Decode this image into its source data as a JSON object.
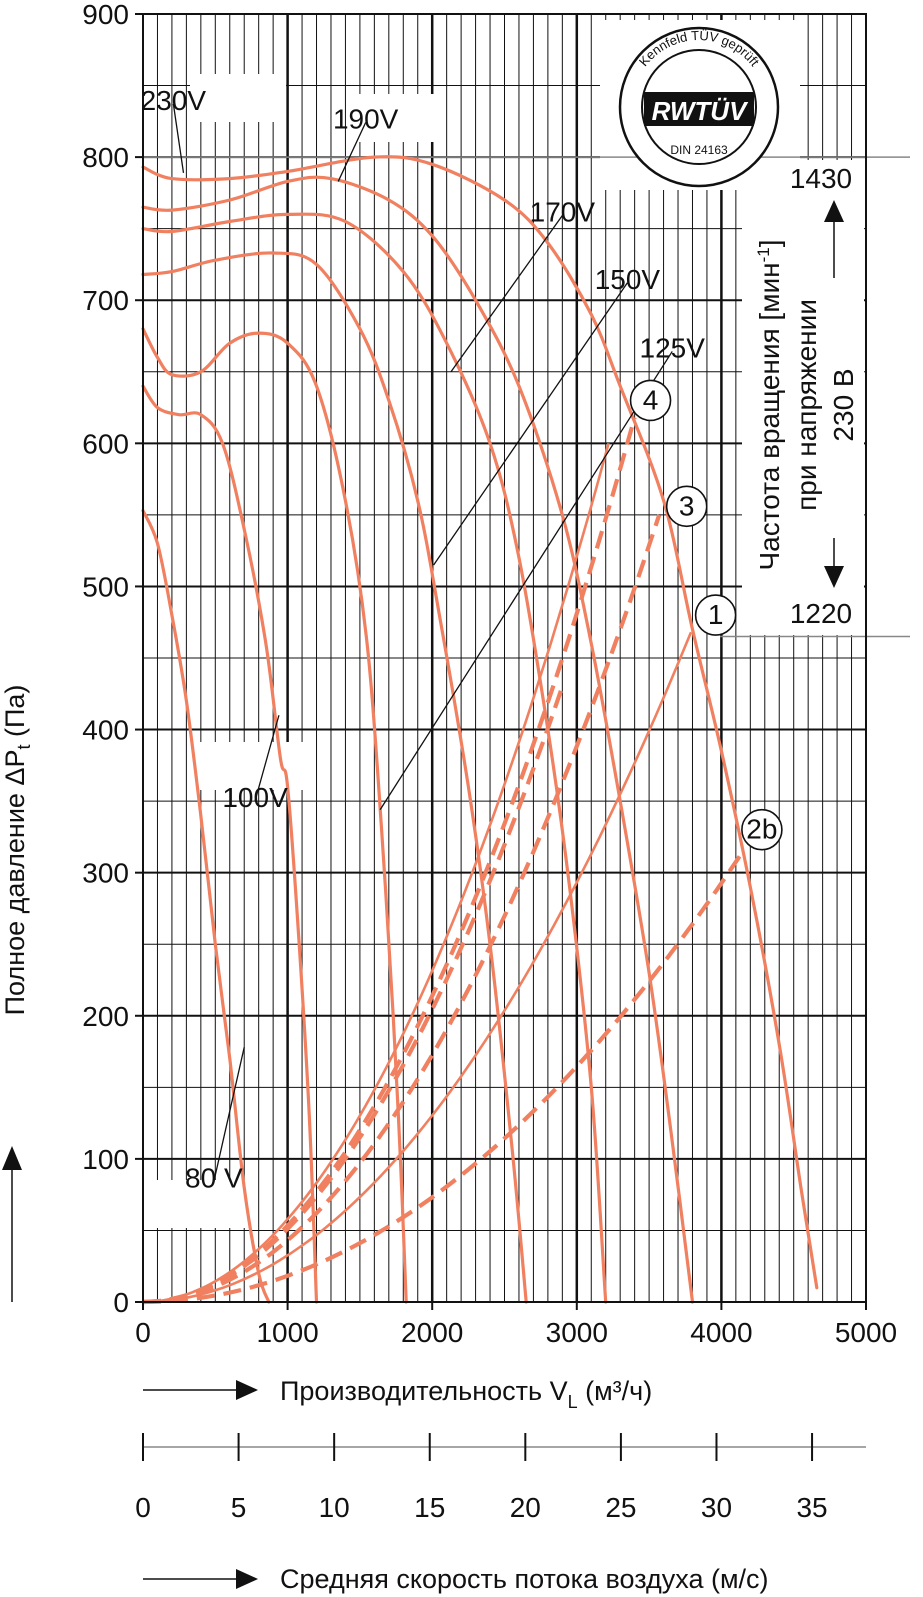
{
  "chart_data": {
    "type": "line",
    "x_axis": {
      "label": "Производительность V",
      "label_sub": "L",
      "label_unit": " (м³/ч)",
      "min": 0,
      "max": 5000,
      "ticks": [
        0,
        1000,
        2000,
        3000,
        4000,
        5000
      ]
    },
    "y_axis": {
      "label": "Полное давление ΔP",
      "label_sub": "t",
      "label_unit": " (Па)",
      "min": 0,
      "max": 900,
      "ticks": [
        0,
        100,
        200,
        300,
        400,
        500,
        600,
        700,
        800,
        900
      ]
    },
    "secondary_axis": {
      "label": "Средняя скорость потока воздуха (м/с)",
      "ticks": [
        0,
        5,
        10,
        15,
        20,
        25,
        30,
        35
      ],
      "m3h_per_ms": 132.2
    },
    "speed_annotation": {
      "line1": "Частота вращения [мин",
      "sup": "-1",
      "line1_end": "]",
      "line2": "при напряжении",
      "line3": "230 В",
      "rpm_high": "1430",
      "rpm_low": "1220",
      "p_high": 800,
      "p_low": 465
    },
    "stamp": {
      "ring_text": "Kennfeld TÜV geprüft",
      "logo": "RWTÜV",
      "din": "DIN 24163"
    },
    "colors": {
      "curve": "#f08060",
      "grid": "#111111"
    },
    "grid": true,
    "fan_curves": [
      {
        "name": "230V",
        "points": [
          [
            0,
            793
          ],
          [
            200,
            785
          ],
          [
            600,
            785
          ],
          [
            1000,
            790
          ],
          [
            1600,
            800
          ],
          [
            2000,
            795
          ],
          [
            2500,
            770
          ],
          [
            2800,
            740
          ],
          [
            3100,
            690
          ],
          [
            3300,
            640
          ],
          [
            3600,
            560
          ],
          [
            3800,
            470
          ],
          [
            4000,
            385
          ],
          [
            4200,
            290
          ],
          [
            4400,
            180
          ],
          [
            4550,
            80
          ],
          [
            4660,
            10
          ]
        ]
      },
      {
        "name": "190V",
        "points": [
          [
            0,
            765
          ],
          [
            200,
            763
          ],
          [
            600,
            770
          ],
          [
            1000,
            783
          ],
          [
            1300,
            785
          ],
          [
            1700,
            770
          ],
          [
            2000,
            745
          ],
          [
            2300,
            700
          ],
          [
            2600,
            640
          ],
          [
            2900,
            550
          ],
          [
            3100,
            460
          ],
          [
            3300,
            350
          ],
          [
            3500,
            230
          ],
          [
            3650,
            120
          ],
          [
            3800,
            0
          ]
        ]
      },
      {
        "name": "170V",
        "points": [
          [
            0,
            750
          ],
          [
            200,
            748
          ],
          [
            600,
            755
          ],
          [
            1000,
            760
          ],
          [
            1400,
            755
          ],
          [
            1800,
            720
          ],
          [
            2100,
            670
          ],
          [
            2400,
            600
          ],
          [
            2600,
            520
          ],
          [
            2800,
            400
          ],
          [
            2950,
            290
          ],
          [
            3100,
            150
          ],
          [
            3200,
            0
          ]
        ]
      },
      {
        "name": "150V",
        "points": [
          [
            0,
            718
          ],
          [
            200,
            720
          ],
          [
            500,
            728
          ],
          [
            900,
            733
          ],
          [
            1200,
            725
          ],
          [
            1500,
            680
          ],
          [
            1700,
            630
          ],
          [
            1900,
            560
          ],
          [
            2050,
            480
          ],
          [
            2250,
            360
          ],
          [
            2400,
            250
          ],
          [
            2550,
            110
          ],
          [
            2650,
            0
          ]
        ]
      },
      {
        "name": "125V",
        "points": [
          [
            0,
            680
          ],
          [
            100,
            660
          ],
          [
            200,
            648
          ],
          [
            400,
            650
          ],
          [
            600,
            670
          ],
          [
            800,
            677
          ],
          [
            1000,
            670
          ],
          [
            1200,
            640
          ],
          [
            1400,
            560
          ],
          [
            1550,
            460
          ],
          [
            1650,
            330
          ],
          [
            1730,
            200
          ],
          [
            1780,
            100
          ],
          [
            1820,
            0
          ]
        ]
      },
      {
        "name": "100V",
        "points": [
          [
            0,
            640
          ],
          [
            100,
            625
          ],
          [
            250,
            620
          ],
          [
            400,
            620
          ],
          [
            550,
            600
          ],
          [
            700,
            540
          ],
          [
            850,
            460
          ],
          [
            950,
            380
          ],
          [
            1000,
            360
          ],
          [
            1080,
            250
          ],
          [
            1150,
            130
          ],
          [
            1200,
            0
          ]
        ]
      },
      {
        "name": "80V",
        "points": [
          [
            0,
            553
          ],
          [
            100,
            530
          ],
          [
            200,
            480
          ],
          [
            300,
            420
          ],
          [
            400,
            340
          ],
          [
            500,
            250
          ],
          [
            600,
            170
          ],
          [
            700,
            80
          ],
          [
            800,
            20
          ],
          [
            870,
            0
          ]
        ]
      }
    ],
    "system_curves": [
      {
        "name": "1",
        "style": "solid",
        "p_end": 468,
        "x_end": 3790
      },
      {
        "name": "2b",
        "style": "dashed",
        "p_end": 315,
        "x_end": 4150
      },
      {
        "name": "3",
        "style": "dashed",
        "p_end": 550,
        "x_end": 3570
      },
      {
        "name": "4",
        "style": "dashed",
        "p_end": 618,
        "x_end": 3400
      },
      {
        "name": "",
        "style": "solid",
        "p_end": 600,
        "x_end": 3220
      },
      {
        "name": "",
        "style": "dashed",
        "p_end": 430,
        "x_end": 2900
      }
    ],
    "curve_labels": [
      {
        "text": "230V",
        "label_x": 210,
        "label_p": 840,
        "to_x": 280,
        "to_p": 789
      },
      {
        "text": "190V",
        "label_x": 1540,
        "label_p": 827,
        "to_x": 1350,
        "to_p": 783
      },
      {
        "text": "170V",
        "label_x": 2900,
        "label_p": 762,
        "to_x": 2130,
        "to_p": 650
      },
      {
        "text": "150V",
        "label_x": 3350,
        "label_p": 715,
        "to_x": 2010,
        "to_p": 515
      },
      {
        "text": "125V",
        "label_x": 3660,
        "label_p": 667,
        "to_x": 1640,
        "to_p": 344
      },
      {
        "text": "100V",
        "label_x": 775,
        "label_p": 353,
        "to_x": 940,
        "to_p": 410
      },
      {
        "text": "80 V",
        "label_x": 490,
        "label_p": 87,
        "to_x": 700,
        "to_p": 178
      }
    ],
    "circle_labels": [
      {
        "text": "4",
        "x": 3510,
        "p": 630
      },
      {
        "text": "3",
        "x": 3760,
        "p": 556
      },
      {
        "text": "1",
        "x": 3960,
        "p": 480
      },
      {
        "text": "2b",
        "x": 4280,
        "p": 330
      }
    ]
  }
}
